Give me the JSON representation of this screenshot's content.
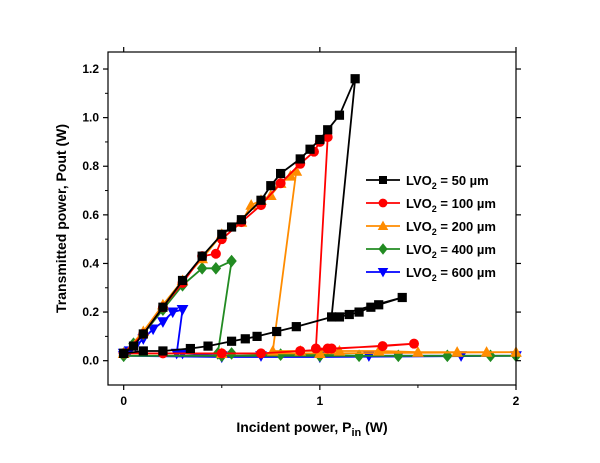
{
  "chart_data": {
    "type": "line",
    "xlabel": {
      "main": "Incident power, P",
      "sub": "in",
      "unit": " (W)"
    },
    "ylabel": "Transmitted power, Pout (W)",
    "xlim": [
      -0.08,
      2.0
    ],
    "ylim": [
      -0.1,
      1.27
    ],
    "xticks": [
      0,
      1,
      2
    ],
    "yticks": [
      0.0,
      0.2,
      0.4,
      0.6,
      0.8,
      1.0,
      1.2
    ],
    "xtick_labels": [
      "0",
      "1",
      "2"
    ],
    "ytick_labels": [
      "0.0",
      "0.2",
      "0.4",
      "0.6",
      "0.8",
      "1.0",
      "1.2"
    ],
    "legend_position": "right",
    "series": [
      {
        "name_main": "LVO",
        "name_sub": "2",
        "name_rest": " = 50 µm",
        "color": "#000000",
        "marker": "square",
        "points": [
          [
            0.0,
            0.03
          ],
          [
            0.05,
            0.06
          ],
          [
            0.1,
            0.11
          ],
          [
            0.2,
            0.22
          ],
          [
            0.3,
            0.33
          ],
          [
            0.4,
            0.43
          ],
          [
            0.5,
            0.52
          ],
          [
            0.55,
            0.55
          ],
          [
            0.6,
            0.58
          ],
          [
            0.7,
            0.66
          ],
          [
            0.75,
            0.72
          ],
          [
            0.8,
            0.77
          ],
          [
            0.9,
            0.83
          ],
          [
            0.95,
            0.87
          ],
          [
            1.0,
            0.91
          ],
          [
            1.04,
            0.95
          ],
          [
            1.1,
            1.01
          ],
          [
            1.18,
            1.16
          ],
          [
            1.06,
            0.18
          ],
          [
            1.1,
            0.18
          ],
          [
            1.15,
            0.19
          ],
          [
            1.2,
            0.2
          ],
          [
            1.26,
            0.22
          ],
          [
            1.3,
            0.23
          ],
          [
            1.42,
            0.26
          ],
          [
            0.88,
            0.14
          ],
          [
            0.78,
            0.12
          ],
          [
            0.68,
            0.1
          ],
          [
            0.62,
            0.09
          ],
          [
            0.55,
            0.08
          ],
          [
            0.43,
            0.06
          ],
          [
            0.34,
            0.05
          ],
          [
            0.2,
            0.04
          ],
          [
            0.1,
            0.04
          ],
          [
            0.0,
            0.03
          ]
        ]
      },
      {
        "name_main": "LVO",
        "name_sub": "2",
        "name_rest": " = 100 µm",
        "color": "#ff0000",
        "marker": "circle",
        "points": [
          [
            0.0,
            0.03
          ],
          [
            0.1,
            0.11
          ],
          [
            0.2,
            0.22
          ],
          [
            0.3,
            0.32
          ],
          [
            0.4,
            0.43
          ],
          [
            0.47,
            0.44
          ],
          [
            0.5,
            0.5
          ],
          [
            0.6,
            0.57
          ],
          [
            0.7,
            0.64
          ],
          [
            0.8,
            0.73
          ],
          [
            0.9,
            0.81
          ],
          [
            0.97,
            0.86
          ],
          [
            1.0,
            0.9
          ],
          [
            1.04,
            0.92
          ],
          [
            0.98,
            0.05
          ],
          [
            1.04,
            0.05
          ],
          [
            1.06,
            0.05
          ],
          [
            1.32,
            0.06
          ],
          [
            1.48,
            0.07
          ],
          [
            0.9,
            0.04
          ],
          [
            0.7,
            0.03
          ],
          [
            0.5,
            0.03
          ],
          [
            0.2,
            0.03
          ],
          [
            0.0,
            0.03
          ]
        ]
      },
      {
        "name_main": "LVO",
        "name_sub": "2",
        "name_rest": " = 200 µm",
        "color": "#ff8c00",
        "marker": "triangle-up",
        "points": [
          [
            0.0,
            0.03
          ],
          [
            0.1,
            0.12
          ],
          [
            0.2,
            0.23
          ],
          [
            0.3,
            0.33
          ],
          [
            0.4,
            0.42
          ],
          [
            0.5,
            0.52
          ],
          [
            0.6,
            0.57
          ],
          [
            0.65,
            0.64
          ],
          [
            0.7,
            0.66
          ],
          [
            0.75,
            0.68
          ],
          [
            0.8,
            0.73
          ],
          [
            0.85,
            0.76
          ],
          [
            0.88,
            0.78
          ],
          [
            0.76,
            0.04
          ],
          [
            0.9,
            0.04
          ],
          [
            1.1,
            0.04
          ],
          [
            1.3,
            0.04
          ],
          [
            1.5,
            0.035
          ],
          [
            1.7,
            0.035
          ],
          [
            1.85,
            0.035
          ],
          [
            2.0,
            0.035
          ],
          [
            1.0,
            0.03
          ],
          [
            0.5,
            0.03
          ],
          [
            0.0,
            0.03
          ]
        ]
      },
      {
        "name_main": "LVO",
        "name_sub": "2",
        "name_rest": " = 400 µm",
        "color": "#228b22",
        "marker": "diamond",
        "points": [
          [
            0.0,
            0.03
          ],
          [
            0.05,
            0.07
          ],
          [
            0.1,
            0.11
          ],
          [
            0.2,
            0.21
          ],
          [
            0.3,
            0.31
          ],
          [
            0.4,
            0.38
          ],
          [
            0.47,
            0.38
          ],
          [
            0.55,
            0.41
          ],
          [
            0.48,
            0.03
          ],
          [
            0.55,
            0.03
          ],
          [
            0.8,
            0.025
          ],
          [
            1.0,
            0.025
          ],
          [
            1.2,
            0.02
          ],
          [
            1.4,
            0.02
          ],
          [
            1.65,
            0.02
          ],
          [
            1.87,
            0.02
          ],
          [
            2.0,
            0.02
          ],
          [
            1.0,
            0.02
          ],
          [
            0.5,
            0.02
          ],
          [
            0.0,
            0.02
          ]
        ]
      },
      {
        "name_main": "LVO",
        "name_sub": "2",
        "name_rest": " = 600 µm",
        "color": "#0000ff",
        "marker": "triangle-down",
        "points": [
          [
            0.0,
            0.03
          ],
          [
            0.03,
            0.04
          ],
          [
            0.06,
            0.06
          ],
          [
            0.1,
            0.09
          ],
          [
            0.15,
            0.13
          ],
          [
            0.2,
            0.16
          ],
          [
            0.25,
            0.2
          ],
          [
            0.3,
            0.21
          ],
          [
            0.27,
            0.03
          ],
          [
            0.3,
            0.03
          ],
          [
            0.5,
            0.02
          ],
          [
            0.7,
            0.02
          ],
          [
            1.0,
            0.02
          ],
          [
            1.25,
            0.02
          ],
          [
            1.4,
            0.02
          ],
          [
            1.72,
            0.02
          ],
          [
            2.0,
            0.02
          ],
          [
            1.0,
            0.015
          ],
          [
            0.5,
            0.015
          ],
          [
            0.0,
            0.02
          ]
        ]
      }
    ]
  }
}
